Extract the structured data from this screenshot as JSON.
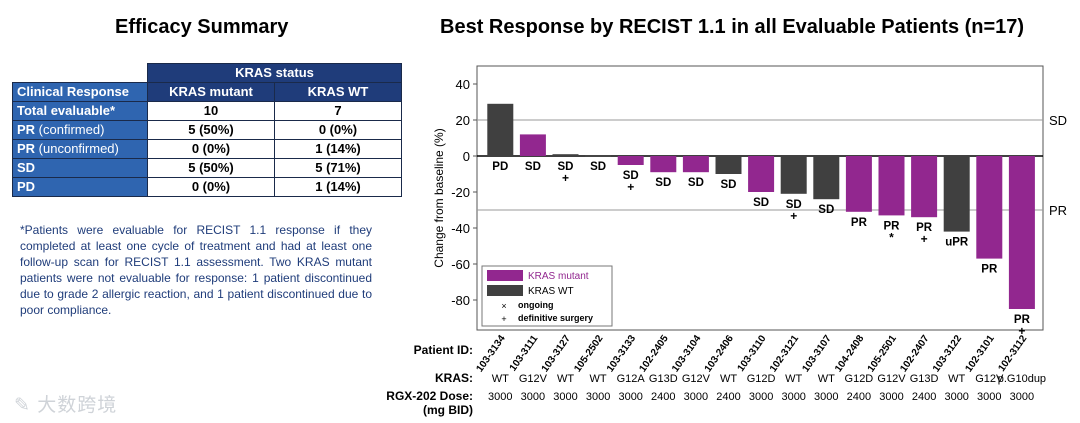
{
  "left_title": "Efficacy Summary",
  "table": {
    "group_header": "KRAS status",
    "col_header_first": "Clinical Response",
    "col_mutant": "KRAS mutant",
    "col_wt": "KRAS WT",
    "rows": [
      {
        "label": "Total evaluable*",
        "label_sub": "",
        "mutant": "10",
        "wt": "7"
      },
      {
        "label": "PR",
        "label_sub": " (confirmed)",
        "mutant": "5 (50%)",
        "wt": "0 (0%)"
      },
      {
        "label": "PR",
        "label_sub": " (unconfirmed)",
        "mutant": "0 (0%)",
        "wt": "1 (14%)"
      },
      {
        "label": "SD",
        "label_sub": "",
        "mutant": "5 (50%)",
        "wt": "5 (71%)"
      },
      {
        "label": "PD",
        "label_sub": "",
        "mutant": "0 (0%)",
        "wt": "1 (14%)"
      }
    ]
  },
  "footnote": "*Patients were evaluable for RECIST 1.1 response if they completed at least one cycle of treatment and had at least one follow-up scan for RECIST 1.1 assessment. Two KRAS mutant patients were not evaluable for response: 1 patient discontinued due to grade 2 allergic reaction, and 1 patient discontinued due to poor compliance.",
  "watermark": "大数跨境",
  "chart_data": {
    "type": "bar",
    "title": "Best Response by RECIST 1.1 in all Evaluable Patients (n=17)",
    "ylabel": "Change from baseline (%)",
    "ylim": [
      -95,
      45
    ],
    "yticks": [
      40,
      20,
      0,
      -20,
      -40,
      -60,
      -80
    ],
    "reference_lines": [
      {
        "value": 20,
        "label": "SD"
      },
      {
        "value": -30,
        "label": "PR"
      }
    ],
    "colors": {
      "mutant": "#92278f",
      "wt": "#404040"
    },
    "legend": {
      "mutant_label": "KRAS mutant",
      "wt_label": "KRAS WT",
      "ongoing_symbol": "×",
      "ongoing_label": "ongoing",
      "surgery_symbol": "+",
      "surgery_label": "definitive surgery"
    },
    "row_labels": {
      "patient": "Patient ID:",
      "kras": "KRAS:",
      "dose_line1": "RGX-202 Dose:",
      "dose_line2": "(mg BID)"
    },
    "patients": [
      {
        "id": "103-3134",
        "value": 29,
        "response": "PD",
        "group": "wt",
        "kras": "WT",
        "dose": "3000",
        "marker": ""
      },
      {
        "id": "103-3111",
        "value": 12,
        "response": "SD",
        "group": "mutant",
        "kras": "G12V",
        "dose": "3000",
        "marker": ""
      },
      {
        "id": "103-3127",
        "value": 1,
        "response": "SD",
        "group": "wt",
        "kras": "WT",
        "dose": "3000",
        "marker": "+"
      },
      {
        "id": "105-2502",
        "value": 0.5,
        "response": "SD",
        "group": "wt",
        "kras": "WT",
        "dose": "3000",
        "marker": ""
      },
      {
        "id": "103-3133",
        "value": -5,
        "response": "SD",
        "group": "mutant",
        "kras": "G12A",
        "dose": "3000",
        "marker": "+"
      },
      {
        "id": "102-2405",
        "value": -9,
        "response": "SD",
        "group": "mutant",
        "kras": "G13D",
        "dose": "2400",
        "marker": ""
      },
      {
        "id": "103-3104",
        "value": -9,
        "response": "SD",
        "group": "mutant",
        "kras": "G12V",
        "dose": "3000",
        "marker": ""
      },
      {
        "id": "103-2406",
        "value": -10,
        "response": "SD",
        "group": "wt",
        "kras": "WT",
        "dose": "2400",
        "marker": ""
      },
      {
        "id": "103-3110",
        "value": -20,
        "response": "SD",
        "group": "mutant",
        "kras": "G12D",
        "dose": "3000",
        "marker": ""
      },
      {
        "id": "102-3121",
        "value": -21,
        "response": "SD",
        "group": "wt",
        "kras": "WT",
        "dose": "3000",
        "marker": "+"
      },
      {
        "id": "103-3107",
        "value": -24,
        "response": "SD",
        "group": "wt",
        "kras": "WT",
        "dose": "3000",
        "marker": ""
      },
      {
        "id": "104-2408",
        "value": -31,
        "response": "PR",
        "group": "mutant",
        "kras": "G12D",
        "dose": "2400",
        "marker": ""
      },
      {
        "id": "105-2501",
        "value": -33,
        "response": "PR",
        "group": "mutant",
        "kras": "G12V",
        "dose": "3000",
        "marker": "*"
      },
      {
        "id": "102-2407",
        "value": -34,
        "response": "PR",
        "group": "mutant",
        "kras": "G13D",
        "dose": "2400",
        "marker": "+"
      },
      {
        "id": "103-3122",
        "value": -42,
        "response": "uPR",
        "group": "wt",
        "kras": "WT",
        "dose": "3000",
        "marker": ""
      },
      {
        "id": "102-3101",
        "value": -57,
        "response": "PR",
        "group": "mutant",
        "kras": "G12V",
        "dose": "3000",
        "marker": ""
      },
      {
        "id": "102-3112",
        "value": -85,
        "response": "PR",
        "group": "mutant",
        "kras": "p.G10dup",
        "dose": "3000",
        "marker": "+"
      }
    ]
  }
}
